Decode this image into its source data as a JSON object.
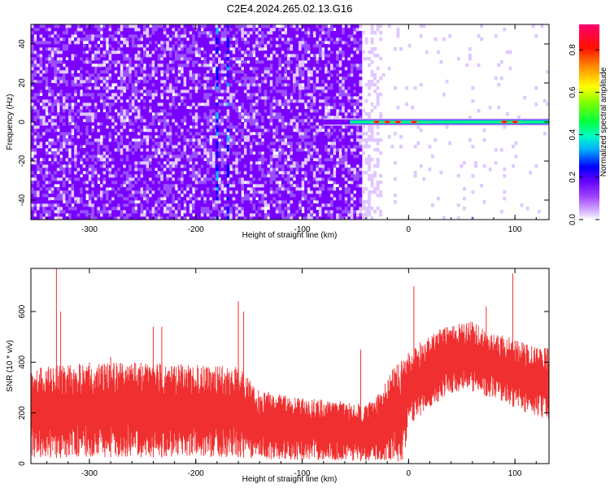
{
  "figure": {
    "title": "C2E4.2024.265.02.13.G16"
  },
  "chart_data": [
    {
      "type": "heatmap",
      "xlabel": "Height of straight line (km)",
      "ylabel": "Frequency (Hz)",
      "xlim": [
        -355,
        132
      ],
      "ylim": [
        -50,
        50
      ],
      "x_ticks": [
        -300,
        -200,
        -100,
        0,
        100
      ],
      "y_ticks": [
        -40,
        -20,
        0,
        20,
        40
      ],
      "colorbar": {
        "label": "Normalized spectral amplitude",
        "range": [
          0,
          0.92
        ],
        "ticks": [
          0.0,
          0.2,
          0.4,
          0.6,
          0.8
        ],
        "colormap": [
          "#e0c8ff",
          "#7a00ff",
          "#0000ff",
          "#00c0ff",
          "#00ff80",
          "#40ff00",
          "#ffff00",
          "#ff8000",
          "#ff0000",
          "#ff0080"
        ]
      },
      "features": {
        "noise_region_km": [
          -355,
          -45
        ],
        "fringe_region_km": [
          -45,
          -25
        ],
        "signal_onset_km": -80,
        "signal_frequency_hz": 0,
        "vertical_streaks_km": [
          -180,
          -172
        ]
      }
    },
    {
      "type": "line",
      "xlabel": "Height of straight line (km)",
      "ylabel": "SNR (10 * v/v)",
      "xlim": [
        -355,
        132
      ],
      "ylim": [
        0,
        770
      ],
      "x_ticks": [
        -300,
        -200,
        -100,
        0,
        100
      ],
      "y_ticks": [
        0,
        200,
        400,
        600
      ],
      "color": "#f03030",
      "envelope": {
        "x": [
          -355,
          -300,
          -250,
          -200,
          -160,
          -140,
          -100,
          -60,
          -40,
          -25,
          -15,
          -5,
          0,
          20,
          40,
          60,
          80,
          100,
          120,
          132
        ],
        "low": [
          20,
          25,
          25,
          25,
          25,
          15,
          15,
          10,
          10,
          15,
          10,
          5,
          150,
          220,
          280,
          280,
          260,
          220,
          180,
          170
        ],
        "high": [
          380,
          400,
          400,
          390,
          390,
          290,
          260,
          250,
          230,
          290,
          380,
          420,
          440,
          510,
          550,
          560,
          520,
          490,
          460,
          460
        ]
      },
      "spikes": [
        {
          "x": -331,
          "y": 770
        },
        {
          "x": -327,
          "y": 600
        },
        {
          "x": -280,
          "y": 420
        },
        {
          "x": -240,
          "y": 540
        },
        {
          "x": -232,
          "y": 540
        },
        {
          "x": -160,
          "y": 640
        },
        {
          "x": -155,
          "y": 600
        },
        {
          "x": -45,
          "y": 450
        },
        {
          "x": 5,
          "y": 700
        },
        {
          "x": 73,
          "y": 620
        },
        {
          "x": 98,
          "y": 750
        }
      ]
    }
  ]
}
